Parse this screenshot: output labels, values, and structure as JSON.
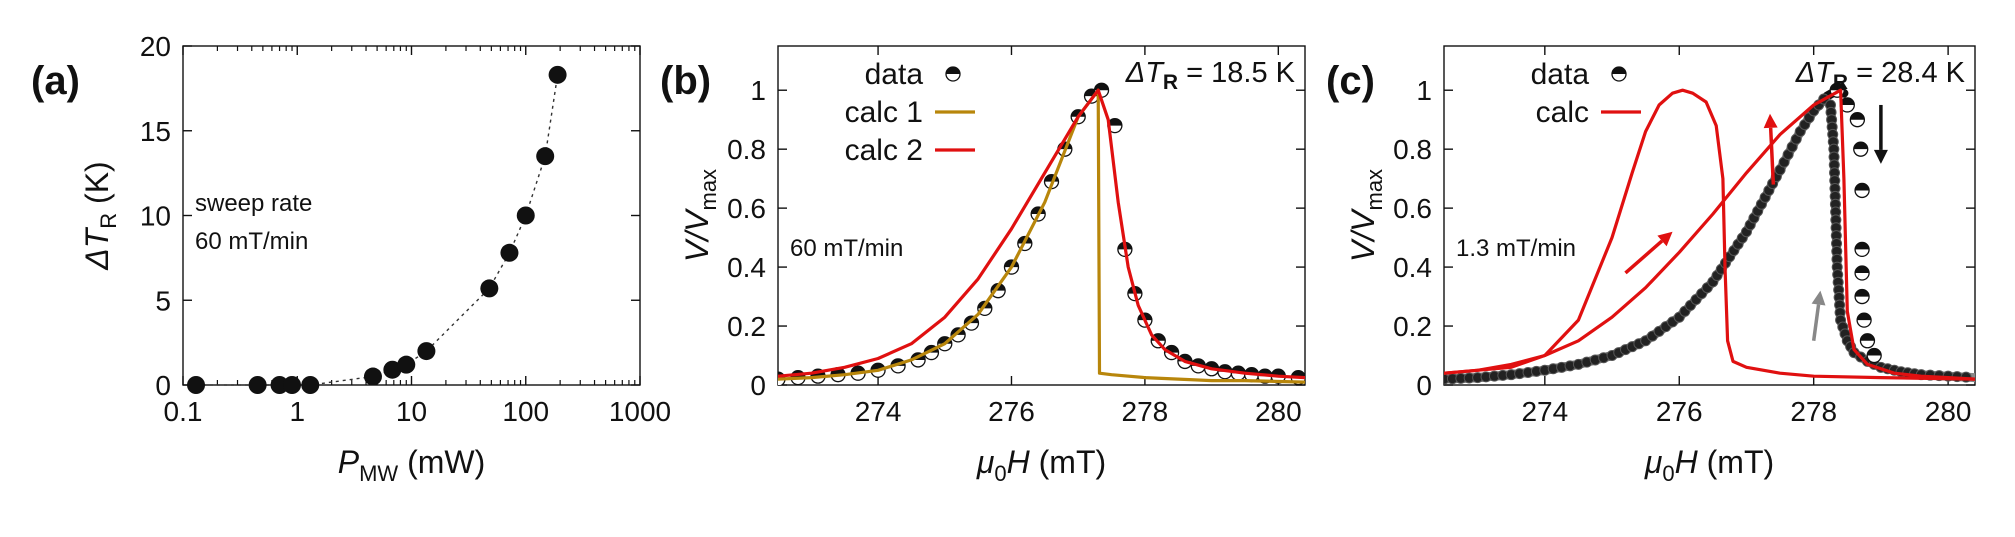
{
  "chart_data": [
    {
      "panel": "(a)",
      "type": "scatter",
      "xscale": "log",
      "xlim": [
        0.1,
        1000
      ],
      "ylim": [
        0,
        20
      ],
      "xticks": [
        0.1,
        1,
        10,
        100,
        1000
      ],
      "xtick_labels": [
        "0.1",
        "1",
        "10",
        "100",
        "1000"
      ],
      "yticks": [
        0,
        5,
        10,
        15,
        20
      ],
      "ytick_labels": [
        "0",
        "5",
        "10",
        "15",
        "20"
      ],
      "xlabel": {
        "main": "P",
        "sub": "MW",
        "unit": " (mW)"
      },
      "ylabel": {
        "pre": "Δ",
        "main": "T",
        "sub": "R",
        "unit": " (K)"
      },
      "annotation_lines": [
        "sweep rate",
        "60 mT/min"
      ],
      "series": [
        {
          "name": "ΔT_R",
          "marker": "filled-circle",
          "line": "dotted",
          "x": [
            0.13,
            0.45,
            0.7,
            0.9,
            1.3,
            4.6,
            6.8,
            9.0,
            13.5,
            48,
            72,
            100,
            148,
            190
          ],
          "y": [
            0.0,
            0.0,
            0.0,
            0.0,
            0.0,
            0.5,
            0.9,
            1.2,
            2.0,
            5.7,
            7.8,
            10.0,
            13.5,
            18.3
          ]
        }
      ]
    },
    {
      "panel": "(b)",
      "type": "line",
      "xlim": [
        272.5,
        280.4
      ],
      "ylim": [
        0,
        1.15
      ],
      "xticks": [
        274,
        276,
        278,
        280
      ],
      "xtick_labels": [
        "274",
        "276",
        "278",
        "280"
      ],
      "yticks": [
        0,
        0.2,
        0.4,
        0.6,
        0.8,
        1
      ],
      "ytick_labels": [
        "0",
        "0.2",
        "0.4",
        "0.6",
        "0.8",
        "1"
      ],
      "xlabel": {
        "main": "μ",
        "sub": "0",
        "main2": "H",
        "unit": " (mT)"
      },
      "ylabel": {
        "main": "V",
        "slash": "/",
        "main2": "V",
        "sub": "max"
      },
      "annotation": "60 mT/min",
      "delta_t": {
        "pre": "Δ",
        "main": "T",
        "sub": "R",
        "value": " = 18.5 K"
      },
      "legend": [
        {
          "label": "data",
          "style": "half-filled-circle"
        },
        {
          "label": "calc 1",
          "color": "#b8860b"
        },
        {
          "label": "calc 2",
          "color": "#e01010"
        }
      ],
      "series": [
        {
          "name": "data",
          "x": [
            272.5,
            272.8,
            273.1,
            273.4,
            273.7,
            274.0,
            274.3,
            274.6,
            274.8,
            275.0,
            275.2,
            275.4,
            275.6,
            275.8,
            276.0,
            276.2,
            276.4,
            276.6,
            276.8,
            277.0,
            277.2,
            277.35,
            277.55,
            277.7,
            277.85,
            278.0,
            278.2,
            278.4,
            278.6,
            278.8,
            279.0,
            279.2,
            279.4,
            279.6,
            279.8,
            280.0,
            280.3
          ],
          "y": [
            0.02,
            0.025,
            0.03,
            0.035,
            0.04,
            0.05,
            0.065,
            0.085,
            0.11,
            0.14,
            0.17,
            0.21,
            0.26,
            0.32,
            0.4,
            0.48,
            0.58,
            0.69,
            0.8,
            0.91,
            0.98,
            1.0,
            0.88,
            0.46,
            0.31,
            0.22,
            0.15,
            0.11,
            0.08,
            0.065,
            0.055,
            0.045,
            0.04,
            0.035,
            0.03,
            0.03,
            0.025
          ]
        },
        {
          "name": "calc 1",
          "color": "#b8860b",
          "x": [
            272.5,
            273.0,
            273.5,
            274.0,
            274.5,
            275.0,
            275.5,
            276.0,
            276.5,
            277.0,
            277.3,
            277.32,
            277.5,
            278.0,
            278.5,
            279.0,
            279.5,
            280.4
          ],
          "y": [
            0.02,
            0.025,
            0.035,
            0.05,
            0.085,
            0.14,
            0.24,
            0.4,
            0.62,
            0.91,
            1.0,
            0.04,
            0.035,
            0.025,
            0.02,
            0.015,
            0.015,
            0.01
          ]
        },
        {
          "name": "calc 2",
          "color": "#e01010",
          "x": [
            272.5,
            273.0,
            273.5,
            274.0,
            274.5,
            275.0,
            275.5,
            276.0,
            276.5,
            277.0,
            277.3,
            277.45,
            277.6,
            277.75,
            277.9,
            278.1,
            278.3,
            278.6,
            279.0,
            279.5,
            280.0,
            280.4
          ],
          "y": [
            0.03,
            0.04,
            0.06,
            0.09,
            0.14,
            0.23,
            0.36,
            0.53,
            0.72,
            0.91,
            1.0,
            0.9,
            0.62,
            0.4,
            0.27,
            0.17,
            0.12,
            0.08,
            0.055,
            0.04,
            0.03,
            0.025
          ]
        }
      ]
    },
    {
      "panel": "(c)",
      "type": "line",
      "xlim": [
        272.5,
        280.4
      ],
      "ylim": [
        0,
        1.15
      ],
      "xticks": [
        274,
        276,
        278,
        280
      ],
      "xtick_labels": [
        "274",
        "276",
        "278",
        "280"
      ],
      "yticks": [
        0,
        0.2,
        0.4,
        0.6,
        0.8,
        1
      ],
      "ytick_labels": [
        "0",
        "0.2",
        "0.4",
        "0.6",
        "0.8",
        "1"
      ],
      "xlabel": {
        "main": "μ",
        "sub": "0",
        "main2": "H",
        "unit": " (mT)"
      },
      "ylabel": {
        "main": "V",
        "slash": "/",
        "main2": "V",
        "sub": "max"
      },
      "annotation": "1.3 mT/min",
      "delta_t": {
        "pre": "Δ",
        "main": "T",
        "sub": "R",
        "value": " = 28.4 K"
      },
      "legend": [
        {
          "label": "data",
          "style": "half-filled-circle"
        },
        {
          "label": "calc",
          "color": "#e01010"
        }
      ],
      "series": [
        {
          "name": "data up-sweep",
          "color": "#111111",
          "x": [
            272.5,
            273.0,
            273.5,
            274.0,
            274.5,
            275.0,
            275.5,
            276.0,
            276.5,
            277.0,
            277.5,
            277.8,
            278.0,
            278.2,
            278.35,
            278.45
          ],
          "y": [
            0.02,
            0.025,
            0.035,
            0.05,
            0.07,
            0.1,
            0.15,
            0.23,
            0.35,
            0.52,
            0.73,
            0.86,
            0.93,
            0.98,
            1.0,
            0.99
          ]
        },
        {
          "name": "data down-sweep",
          "color": "#888888",
          "x": [
            272.5,
            273.0,
            273.5,
            274.0,
            274.5,
            275.0,
            275.5,
            276.0,
            276.5,
            277.0,
            277.5,
            277.8,
            278.0,
            278.15,
            278.25,
            278.3,
            278.35,
            278.4,
            278.5,
            278.6,
            278.8,
            279.0,
            279.3,
            279.6,
            280.0,
            280.4
          ],
          "y": [
            0.02,
            0.025,
            0.035,
            0.05,
            0.07,
            0.1,
            0.15,
            0.23,
            0.35,
            0.52,
            0.73,
            0.86,
            0.93,
            0.97,
            0.95,
            0.8,
            0.4,
            0.22,
            0.15,
            0.11,
            0.08,
            0.06,
            0.045,
            0.035,
            0.03,
            0.025
          ]
        },
        {
          "name": "data points",
          "style": "half-filled-circle",
          "x": [
            278.35,
            278.5,
            278.65,
            278.7,
            278.72,
            278.72,
            278.72,
            278.72,
            278.75,
            278.8,
            278.9
          ],
          "y": [
            1.0,
            0.95,
            0.9,
            0.8,
            0.66,
            0.46,
            0.38,
            0.3,
            0.22,
            0.15,
            0.1
          ]
        },
        {
          "name": "calc up-sweep",
          "color": "#e01010",
          "x": [
            272.5,
            273.0,
            273.5,
            274.0,
            274.5,
            275.0,
            275.5,
            276.0,
            276.5,
            277.0,
            277.5,
            278.0,
            278.4,
            278.45,
            278.5,
            278.6,
            278.8,
            279.2,
            279.6,
            280.0,
            280.4
          ],
          "y": [
            0.04,
            0.05,
            0.07,
            0.1,
            0.15,
            0.23,
            0.33,
            0.45,
            0.58,
            0.72,
            0.85,
            0.95,
            1.0,
            0.7,
            0.25,
            0.12,
            0.07,
            0.04,
            0.03,
            0.025,
            0.02
          ]
        },
        {
          "name": "calc down-sweep",
          "color": "#e01010",
          "x": [
            280.4,
            279.0,
            278.0,
            277.5,
            277.0,
            276.8,
            276.72,
            276.68,
            276.65,
            276.55,
            276.4,
            276.2,
            276.05,
            275.9,
            275.7,
            275.5,
            275.3,
            275.0,
            274.5,
            274.0,
            273.5,
            272.5
          ],
          "y": [
            0.02,
            0.025,
            0.03,
            0.04,
            0.06,
            0.08,
            0.15,
            0.4,
            0.7,
            0.88,
            0.96,
            0.99,
            1.0,
            0.99,
            0.95,
            0.86,
            0.72,
            0.5,
            0.22,
            0.1,
            0.06,
            0.04
          ]
        }
      ],
      "arrows": [
        {
          "color": "#e01010",
          "from": [
            275.2,
            0.38
          ],
          "to": [
            275.9,
            0.52
          ]
        },
        {
          "color": "#e01010",
          "from": [
            277.4,
            0.68
          ],
          "to": [
            277.35,
            0.92
          ]
        },
        {
          "color": "#111111",
          "from": [
            279.0,
            0.95
          ],
          "to": [
            279.0,
            0.75
          ]
        },
        {
          "color": "#888888",
          "from": [
            278.0,
            0.15
          ],
          "to": [
            278.1,
            0.32
          ]
        }
      ]
    }
  ]
}
